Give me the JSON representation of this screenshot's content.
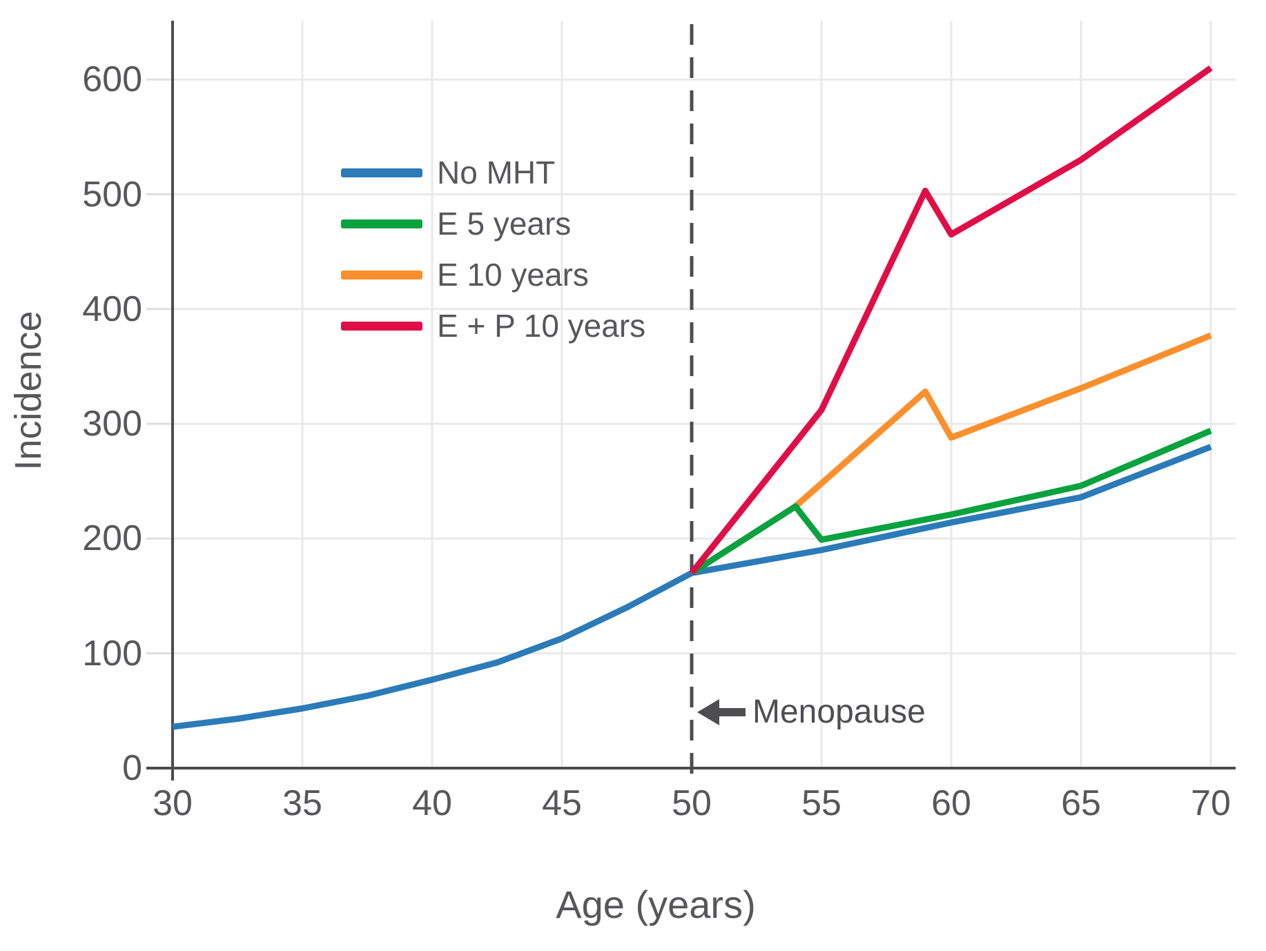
{
  "axes": {
    "x_label": "Age (years)",
    "y_label": "Incidence",
    "x_ticks": [
      30,
      35,
      40,
      45,
      50,
      55,
      60,
      65,
      70
    ],
    "y_ticks": [
      0,
      100,
      200,
      300,
      400,
      500,
      600
    ]
  },
  "annotation": {
    "text": "Menopause",
    "arrow": "left-arrow",
    "at_age": 50
  },
  "colors": {
    "no_mht": "#2b7bb9",
    "e5": "#09a23e",
    "e10": "#fb8f2d",
    "ep10": "#e00e47",
    "axis": "#4c4c4e",
    "grid": "#e9e9e9",
    "dashed_line": "#4e4e52",
    "text": "#57575b"
  },
  "chart_data": {
    "type": "line",
    "title": "",
    "xlabel": "Age (years)",
    "ylabel": "Incidence",
    "xlim": [
      30,
      70
    ],
    "ylim": [
      0,
      650
    ],
    "x_ticks": [
      30,
      35,
      40,
      45,
      50,
      55,
      60,
      65,
      70
    ],
    "y_ticks": [
      0,
      100,
      200,
      300,
      400,
      500,
      600
    ],
    "grid": true,
    "legend_position": "upper-left-inside",
    "menopause_line": {
      "x": 50,
      "style": "dashed",
      "label": "Menopause"
    },
    "series": [
      {
        "name": "No MHT",
        "color": "#2b7bb9",
        "points": [
          [
            30,
            36
          ],
          [
            32.5,
            43
          ],
          [
            35,
            52
          ],
          [
            37.5,
            63
          ],
          [
            40,
            77
          ],
          [
            42.5,
            92
          ],
          [
            45,
            113
          ],
          [
            47.5,
            140
          ],
          [
            50,
            170
          ],
          [
            55,
            190
          ],
          [
            60,
            214
          ],
          [
            65,
            236
          ],
          [
            70,
            280
          ]
        ]
      },
      {
        "name": "E 5 years",
        "color": "#09a23e",
        "points": [
          [
            50,
            170
          ],
          [
            54,
            228
          ],
          [
            55,
            199
          ],
          [
            60,
            221
          ],
          [
            65,
            246
          ],
          [
            70,
            294
          ]
        ]
      },
      {
        "name": "E 10 years",
        "color": "#fb8f2d",
        "points": [
          [
            50,
            170
          ],
          [
            54,
            228
          ],
          [
            59,
            328
          ],
          [
            60,
            288
          ],
          [
            65,
            331
          ],
          [
            70,
            377
          ]
        ]
      },
      {
        "name": "E + P 10 years",
        "color": "#e00e47",
        "points": [
          [
            50,
            170
          ],
          [
            55,
            312
          ],
          [
            59,
            503
          ],
          [
            60,
            465
          ],
          [
            65,
            530
          ],
          [
            70,
            610
          ]
        ]
      }
    ]
  }
}
